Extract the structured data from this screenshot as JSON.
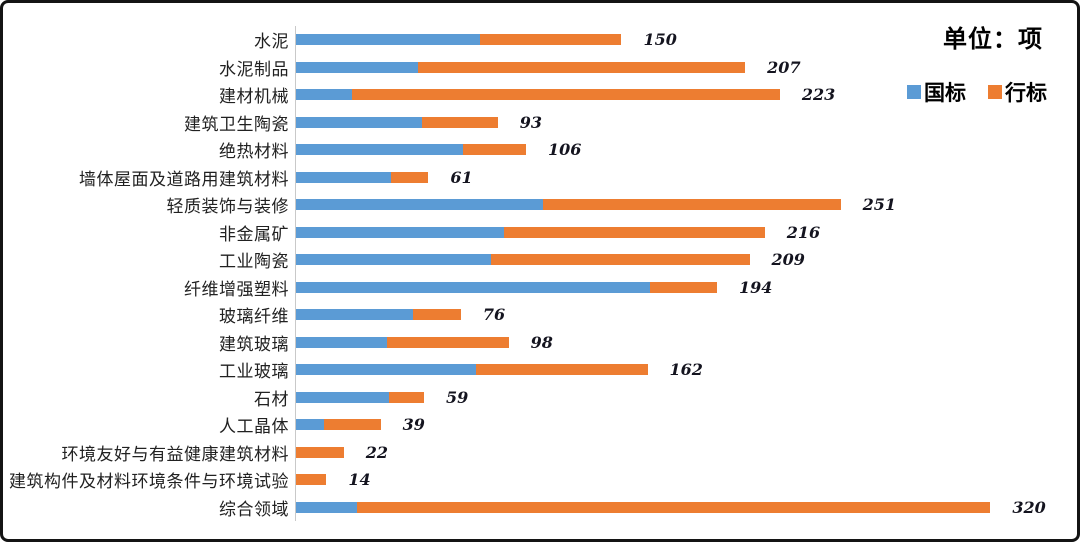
{
  "chart": {
    "unit_label": "单位：项",
    "legend": [
      {
        "label": "国标",
        "color": "#5B9BD5"
      },
      {
        "label": "行标",
        "color": "#ED7D31"
      }
    ],
    "colors": {
      "guobiao_blue": "#5B9BD5",
      "hangbiao_orange": "#ED7D31",
      "axis_line": "#c9c9c9",
      "value_text": "#14141f",
      "border": "#141414"
    }
  },
  "chart_data": {
    "type": "bar",
    "orientation": "horizontal",
    "stacked": true,
    "title": "",
    "unit": "单位：项",
    "legend_position": "top-right",
    "xlim": [
      0,
      340
    ],
    "grid": false,
    "categories": [
      "水泥",
      "水泥制品",
      "建材机械",
      "建筑卫生陶瓷",
      "绝热材料",
      "墙体屋面及道路用建筑材料",
      "轻质装饰与装修",
      "非金属矿",
      "工业陶瓷",
      "纤维增强塑料",
      "玻璃纤维",
      "建筑玻璃",
      "工业玻璃",
      "石材",
      "人工晶体",
      "环境友好与有益健康建筑材料",
      "建筑构件及材料环境条件与环境试验",
      "综合领域"
    ],
    "series": [
      {
        "name": "国标",
        "color": "#5B9BD5",
        "values": [
          85,
          56,
          26,
          58,
          77,
          44,
          114,
          96,
          90,
          163,
          54,
          42,
          83,
          43,
          13,
          0,
          0,
          28
        ]
      },
      {
        "name": "行标",
        "color": "#ED7D31",
        "values": [
          65,
          151,
          197,
          35,
          29,
          17,
          137,
          120,
          119,
          31,
          22,
          56,
          79,
          16,
          26,
          22,
          14,
          292
        ]
      }
    ],
    "totals": [
      150,
      207,
      223,
      93,
      106,
      61,
      251,
      216,
      209,
      194,
      76,
      98,
      162,
      59,
      39,
      22,
      14,
      320
    ]
  }
}
